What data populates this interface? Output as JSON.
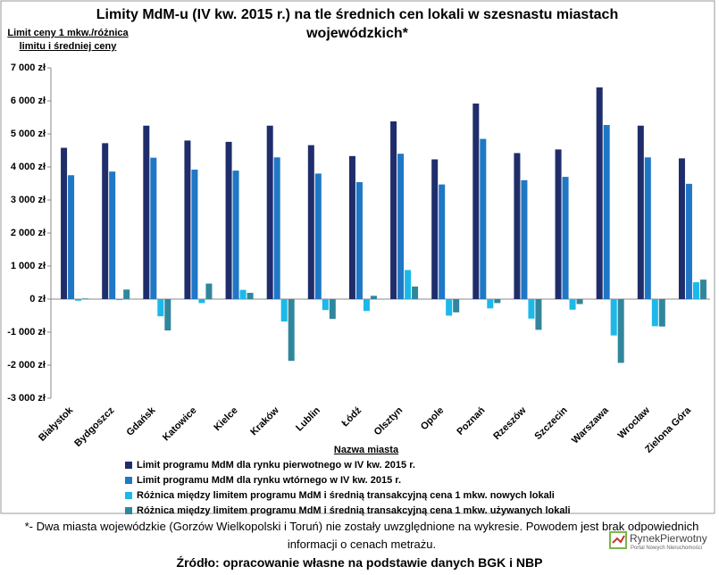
{
  "chart_data": {
    "type": "bar",
    "title": "Limity MdM-u (IV kw. 2015 r.) na tle średnich cen lokali w szesnastu miastach wojewódzkich*",
    "y_label": "Limit ceny 1 mkw./różnica limitu i średniej ceny",
    "x_label": "Nazwa miasta",
    "categories": [
      "Białystok",
      "Bydgoszcz",
      "Gdańsk",
      "Katowice",
      "Kielce",
      "Kraków",
      "Lublin",
      "Łódź",
      "Olsztyn",
      "Opole",
      "Poznań",
      "Rzeszów",
      "Szczecin",
      "Warszawa",
      "Wrocław",
      "Zielona Góra"
    ],
    "series": [
      {
        "name": "Limit programu MdM dla rynku pierwotnego w IV kw. 2015 r.",
        "color": "#1f2d6b",
        "values": [
          4580,
          4720,
          5250,
          4800,
          4760,
          5250,
          4660,
          4330,
          5380,
          4230,
          5920,
          4420,
          4530,
          6410,
          5250,
          4260
        ]
      },
      {
        "name": "Limit programu MdM dla rynku wtórnego w IV kw. 2015 r.",
        "color": "#1f77c6",
        "values": [
          3750,
          3860,
          4280,
          3920,
          3890,
          4290,
          3800,
          3540,
          4400,
          3470,
          4850,
          3600,
          3700,
          5270,
          4290,
          3490
        ]
      },
      {
        "name": "Różnica między limitem programu MdM i średnią transakcyjną cena 1 mkw. nowych lokali",
        "color": "#1cb8ea",
        "values": [
          -50,
          -30,
          -520,
          -120,
          280,
          -680,
          -330,
          -360,
          880,
          -500,
          -280,
          -590,
          -320,
          -1100,
          -820,
          510
        ]
      },
      {
        "name": "Różnica między limitem programu MdM i średnią transakcyjną cena 1 mkw. używanych lokali",
        "color": "#31869c",
        "values": [
          20,
          290,
          -950,
          470,
          190,
          -1870,
          -600,
          100,
          380,
          -400,
          -120,
          -930,
          -150,
          -1930,
          -830,
          590
        ]
      }
    ],
    "ylim": [
      -3000,
      7000
    ],
    "yticks": [
      {
        "value": -3000,
        "label": "-3 000 zł"
      },
      {
        "value": -2000,
        "label": "-2 000 zł"
      },
      {
        "value": -1000,
        "label": "-1 000 zł"
      },
      {
        "value": 0,
        "label": "0 zł"
      },
      {
        "value": 1000,
        "label": "1 000 zł"
      },
      {
        "value": 2000,
        "label": "2 000 zł"
      },
      {
        "value": 3000,
        "label": "3 000 zł"
      },
      {
        "value": 4000,
        "label": "4 000 zł"
      },
      {
        "value": 5000,
        "label": "5 000 zł"
      },
      {
        "value": 6000,
        "label": "6 000 zł"
      },
      {
        "value": 7000,
        "label": "7 000 zł"
      }
    ],
    "grid": false,
    "footnote": "*- Dwa miasta wojewódzkie (Gorzów Wielkopolski i Toruń) nie zostały uwzględnione na wykresie. Powodem jest brak odpowiednich informacji o cenach metrażu.",
    "source": "Źródło: opracowanie własne na podstawie danych BGK i NBP",
    "logo_name": "RynekPierwotny",
    "logo_tagline": "Portal Nowych Nieruchomości"
  }
}
